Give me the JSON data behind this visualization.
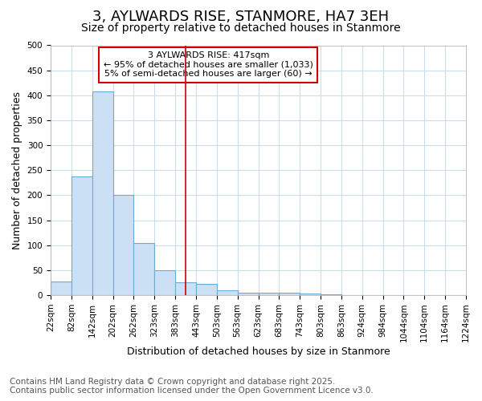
{
  "title": "3, AYLWARDS RISE, STANMORE, HA7 3EH",
  "subtitle": "Size of property relative to detached houses in Stanmore",
  "xlabel": "Distribution of detached houses by size in Stanmore",
  "ylabel": "Number of detached properties",
  "bar_values": [
    27,
    238,
    408,
    200,
    105,
    50,
    25,
    22,
    10,
    5,
    4,
    4,
    3,
    1,
    0,
    0,
    0,
    0,
    0,
    0
  ],
  "bin_labels": [
    "22sqm",
    "82sqm",
    "142sqm",
    "202sqm",
    "262sqm",
    "323sqm",
    "383sqm",
    "443sqm",
    "503sqm",
    "563sqm",
    "623sqm",
    "683sqm",
    "743sqm",
    "803sqm",
    "863sqm",
    "924sqm",
    "984sqm",
    "1044sqm",
    "1104sqm",
    "1164sqm",
    "1224sqm"
  ],
  "bar_color": "#cce0f5",
  "bar_edge_color": "#6aaad4",
  "vline_color": "#cc0000",
  "vline_index": 6.5,
  "annotation_text": "3 AYLWARDS RISE: 417sqm\n← 95% of detached houses are smaller (1,033)\n5% of semi-detached houses are larger (60) →",
  "annotation_box_edgecolor": "#cc0000",
  "annotation_facecolor": "#ffffff",
  "ylim": [
    0,
    500
  ],
  "yticks": [
    0,
    50,
    100,
    150,
    200,
    250,
    300,
    350,
    400,
    450,
    500
  ],
  "footer": "Contains HM Land Registry data © Crown copyright and database right 2025.\nContains public sector information licensed under the Open Government Licence v3.0.",
  "bg_color": "#ffffff",
  "grid_color": "#c8ddf0",
  "title_fontsize": 13,
  "subtitle_fontsize": 10,
  "tick_fontsize": 7.5,
  "axis_label_fontsize": 9,
  "footer_fontsize": 7.5,
  "annotation_fontsize": 8
}
